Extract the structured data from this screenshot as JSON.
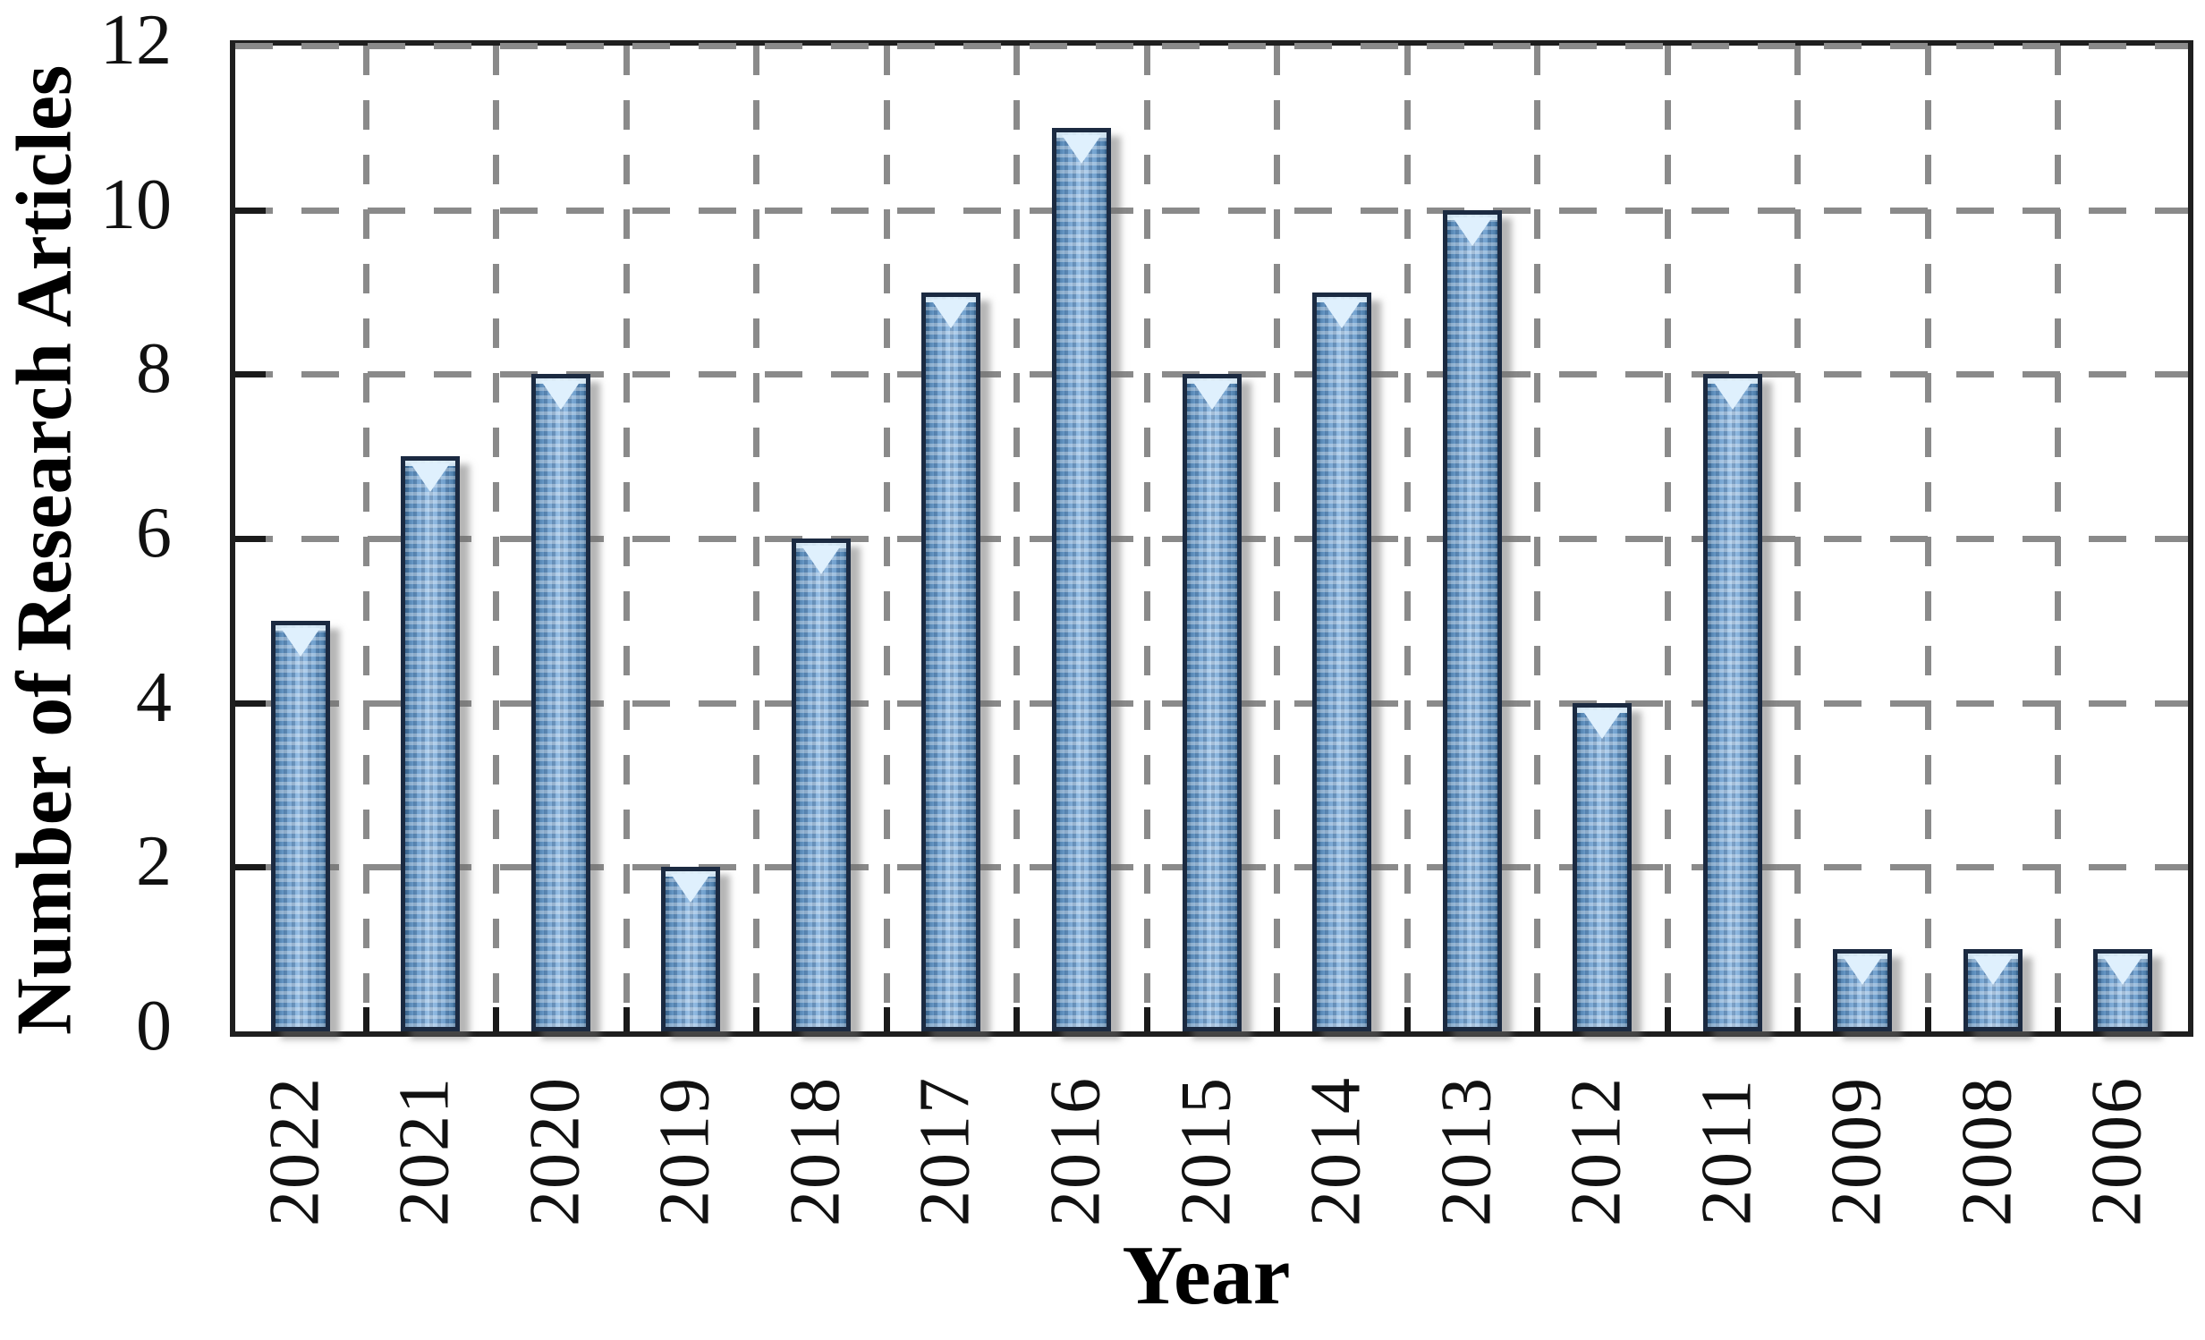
{
  "chart_data": {
    "type": "bar",
    "title": "",
    "xlabel": "Year",
    "ylabel": "Number of Research Articles",
    "categories": [
      "2022",
      "2021",
      "2020",
      "2019",
      "2018",
      "2017",
      "2016",
      "2015",
      "2014",
      "2013",
      "2012",
      "2011",
      "2009",
      "2008",
      "2006"
    ],
    "values": [
      5,
      7,
      8,
      2,
      6,
      9,
      11,
      8,
      9,
      10,
      4,
      8,
      1,
      1,
      1
    ],
    "ylim": [
      0,
      12
    ],
    "yticks": [
      0,
      2,
      4,
      6,
      8,
      10,
      12
    ],
    "grid": "dashed-both-axes",
    "legend": "none",
    "colors": {
      "bar_fill": "#6d9dcb",
      "bar_fill_light": "#a5c9ec",
      "bar_fill_dark": "#44749f",
      "bar_border": "#1b2a41",
      "bar_highlight": "#dff0fd",
      "gridline": "#8a8a8a",
      "axis": "#1f1f1f",
      "text": "#111111",
      "shadow": "rgba(110,110,110,0.5)"
    }
  }
}
